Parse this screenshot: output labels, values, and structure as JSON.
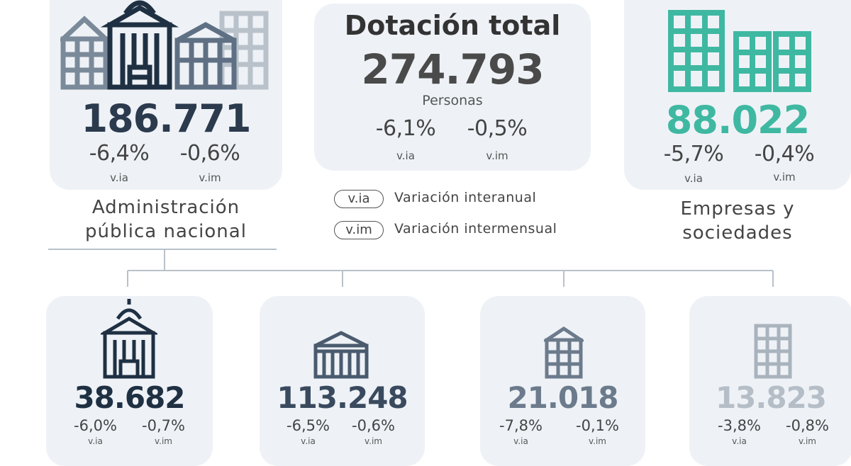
{
  "colors": {
    "navy": "#1f3043",
    "slate": "#5a6b7e",
    "light_slate": "#9aa5b1",
    "teal": "#3fb8a2",
    "card_bg": "#eef2f6",
    "text": "#444444"
  },
  "total": {
    "title": "Dotación total",
    "value": "274.793",
    "unit": "Personas",
    "via": "-6,1%",
    "vim": "-0,5%",
    "via_label": "v.ia",
    "vim_label": "v.im"
  },
  "apn": {
    "value": "186.771",
    "via": "-6,4%",
    "vim": "-0,6%",
    "via_label": "v.ia",
    "vim_label": "v.im",
    "label_line1": "Administración",
    "label_line2": "pública nacional",
    "icon": "government-buildings-icon"
  },
  "empresas": {
    "value": "88.022",
    "via": "-5,7%",
    "vim": "-0,4%",
    "via_label": "v.ia",
    "vim_label": "v.im",
    "label_line1": "Empresas y",
    "label_line2": "sociedades",
    "icon": "office-buildings-icon"
  },
  "legend": {
    "via_tag": "v.ia",
    "via_text": "Variación interanual",
    "vim_tag": "v.im",
    "vim_text": "Variación intermensual"
  },
  "sub_cards": [
    {
      "value": "38.682",
      "via": "-6,0%",
      "vim": "-0,7%",
      "via_label": "v.ia",
      "vim_label": "v.im",
      "icon": "capitol-dome-icon"
    },
    {
      "value": "113.248",
      "via": "-6,5%",
      "vim": "-0,6%",
      "via_label": "v.ia",
      "vim_label": "v.im",
      "icon": "columned-building-icon"
    },
    {
      "value": "21.018",
      "via": "-7,8%",
      "vim": "-0,1%",
      "via_label": "v.ia",
      "vim_label": "v.im",
      "icon": "small-building-icon"
    },
    {
      "value": "13.823",
      "via": "-3,8%",
      "vim": "-0,8%",
      "via_label": "v.ia",
      "vim_label": "v.im",
      "icon": "tower-building-icon"
    }
  ]
}
